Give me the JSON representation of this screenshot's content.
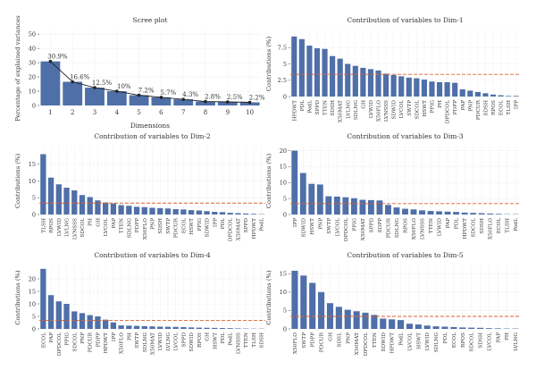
{
  "colors": {
    "bar": "#4f6fa8",
    "refline": "#e0622c",
    "grid": "#d9d9d9",
    "line": "#222222",
    "axis": "#555555",
    "text": "#333333"
  },
  "chart_data": [
    {
      "id": "scree",
      "type": "bar",
      "title": "Scree plot",
      "xlabel": "Dimensions",
      "ylabel": "Percentage of explained variances",
      "categories": [
        "1",
        "2",
        "3",
        "4",
        "5",
        "6",
        "7",
        "8",
        "9",
        "10"
      ],
      "values": [
        30.9,
        16.6,
        12.5,
        10.0,
        7.2,
        5.7,
        4.3,
        2.8,
        2.5,
        2.2
      ],
      "data_labels": [
        "30.9%",
        "16.6%",
        "12.5%",
        "10%",
        "7.2%",
        "5.7%",
        "4.3%",
        "2.8%",
        "2.5%",
        "2.2%"
      ],
      "ylim": [
        0,
        52
      ],
      "yticks": [
        0,
        10,
        20,
        30,
        40,
        50
      ],
      "line_overlay": true,
      "grid": true
    },
    {
      "id": "dim1",
      "type": "bar",
      "title": "Contribution of variables to Dim-1",
      "xlabel": "",
      "ylabel": "Contributions (%)",
      "categories": [
        "HPDWT",
        "PDL",
        "PodL",
        "SPPD",
        "TTEN",
        "SDSH",
        "X50MAT",
        "LVLNG",
        "SDLNG",
        "GH",
        "LVWID",
        "X50FLO",
        "LVNSSS",
        "SDWID",
        "LVCOL",
        "SWTP",
        "SDCOL",
        "HSWT",
        "PPIG",
        "PH",
        "DPDCOL",
        "PDPP",
        "PAP",
        "PNP",
        "PDCUR",
        "SDSH",
        "RPOS",
        "ECOL",
        "TLSH",
        "IPP"
      ],
      "values": [
        9.2,
        8.8,
        7.8,
        7.4,
        7.3,
        6.2,
        5.8,
        5.0,
        4.7,
        4.4,
        4.2,
        4.0,
        3.5,
        3.3,
        3.1,
        2.9,
        2.8,
        2.6,
        2.3,
        2.2,
        2.2,
        2.1,
        1.1,
        0.9,
        0.7,
        0.5,
        0.3,
        0.2,
        0.1,
        0.1
      ],
      "ylim": [
        0,
        10
      ],
      "yticks": [
        0,
        2.5,
        5,
        7.5
      ],
      "reference_line": 3.4,
      "grid": true
    },
    {
      "id": "dim2",
      "type": "bar",
      "title": "Contribution of variables to Dim-2",
      "xlabel": "",
      "ylabel": "Contributions (%)",
      "categories": [
        "TLSH",
        "RPOS",
        "LVWID",
        "LVLNG",
        "LVNSSS",
        "SDCOL",
        "PH",
        "GH",
        "LVCOL",
        "PAP",
        "TTEN",
        "SDLNG",
        "PDPP",
        "X50FLO",
        "PNP",
        "SDSH",
        "SWTP",
        "PDCUR",
        "ECOL",
        "HSWT",
        "PPIG",
        "SDWID",
        "IPP",
        "PDL",
        "DPDCOL",
        "X50MAT",
        "SPPD",
        "HPDWT",
        "PodL"
      ],
      "values": [
        18.0,
        11.0,
        9.0,
        8.0,
        7.2,
        5.8,
        5.2,
        4.2,
        3.6,
        3.3,
        2.8,
        2.6,
        2.3,
        2.2,
        2.0,
        1.9,
        1.8,
        1.6,
        1.5,
        1.3,
        1.2,
        1.0,
        0.8,
        0.7,
        0.5,
        0.4,
        0.3,
        0.2,
        0.1
      ],
      "ylim": [
        0,
        20
      ],
      "yticks": [
        0,
        5,
        10,
        15
      ],
      "reference_line": 3.4,
      "grid": true
    },
    {
      "id": "dim3",
      "type": "bar",
      "title": "Contribution of variables to Dim-3",
      "xlabel": "",
      "ylabel": "Contributions (%)",
      "categories": [
        "IPP",
        "SDWID",
        "HSWT",
        "PNP",
        "SWTP",
        "LVCOL",
        "DPDCOL",
        "PPIG",
        "X50MAT",
        "SPPD",
        "SDPP",
        "PDCUR",
        "SDLNG",
        "RPOS",
        "X50FLO",
        "LVNSSS",
        "TTEN",
        "LVWID",
        "PAP",
        "PDL",
        "HPDWT",
        "SDCOL",
        "SDSH",
        "X50FLO",
        "ECOL",
        "TLSH",
        "PodL"
      ],
      "values": [
        20.0,
        13.0,
        9.6,
        9.4,
        5.7,
        5.6,
        5.4,
        5.1,
        4.6,
        4.5,
        4.4,
        3.0,
        2.2,
        1.8,
        1.6,
        1.3,
        1.1,
        1.0,
        0.9,
        0.8,
        0.6,
        0.5,
        0.4,
        0.3,
        0.2,
        0.1,
        0.1
      ],
      "ylim": [
        0,
        21
      ],
      "yticks": [
        0,
        5,
        10,
        15,
        20
      ],
      "reference_line": 3.4,
      "grid": true
    },
    {
      "id": "dim4",
      "type": "bar",
      "title": "Contribution of variables to Dim-4",
      "xlabel": "",
      "ylabel": "Contributions (%)",
      "categories": [
        "ECOL",
        "PAP",
        "DPDCOL",
        "PPIG",
        "SDCOL",
        "PNP",
        "PDCUR",
        "PDPP",
        "HPDWT",
        "IPP",
        "X50FLO",
        "PH",
        "SWTP",
        "SDLNG",
        "X50MAT",
        "LVWID",
        "LVLNG",
        "LVCOL",
        "SPPD",
        "SDWID",
        "RPOS",
        "GH",
        "HSWT",
        "PDL",
        "PodL",
        "LVNSSS",
        "TTEN",
        "TLSH",
        "SDSH"
      ],
      "values": [
        24.0,
        13.5,
        11.0,
        10.0,
        7.0,
        6.3,
        5.5,
        5.0,
        3.7,
        2.6,
        1.4,
        1.3,
        1.2,
        1.1,
        1.0,
        0.9,
        0.85,
        0.8,
        0.7,
        0.6,
        0.5,
        0.45,
        0.4,
        0.35,
        0.3,
        0.2,
        0.15,
        0.1,
        0.1
      ],
      "ylim": [
        0,
        25
      ],
      "yticks": [
        0,
        5,
        10,
        15,
        20
      ],
      "reference_line": 3.4,
      "grid": true
    },
    {
      "id": "dim5",
      "type": "bar",
      "title": "Contribution of variables to Dim-5",
      "xlabel": "",
      "ylabel": "Contributions (%)",
      "categories": [
        "X50FLO",
        "SWTP",
        "PDPP",
        "PDCUR",
        "GH",
        "SDSL",
        "PNP",
        "X50MAT",
        "DPDCOL",
        "TTEN",
        "SDWID",
        "HPDWT",
        "PodL",
        "LVCOL",
        "HSWT",
        "LVWID",
        "SDLNG",
        "PDL",
        "ECOL",
        "RPOS",
        "SDCOL",
        "SDSH",
        "LVCOL",
        "PAP",
        "PH",
        "LVLNG"
      ],
      "values": [
        15.8,
        14.5,
        12.5,
        10.0,
        7.0,
        6.0,
        5.2,
        4.8,
        4.4,
        3.8,
        2.8,
        2.6,
        2.4,
        1.4,
        1.2,
        0.9,
        0.7,
        0.6,
        0.5,
        0.4,
        0.35,
        0.3,
        0.2,
        0.15,
        0.1,
        0.1
      ],
      "ylim": [
        0,
        17
      ],
      "yticks": [
        0,
        5,
        10,
        15
      ],
      "reference_line": 3.4,
      "grid": true
    }
  ]
}
